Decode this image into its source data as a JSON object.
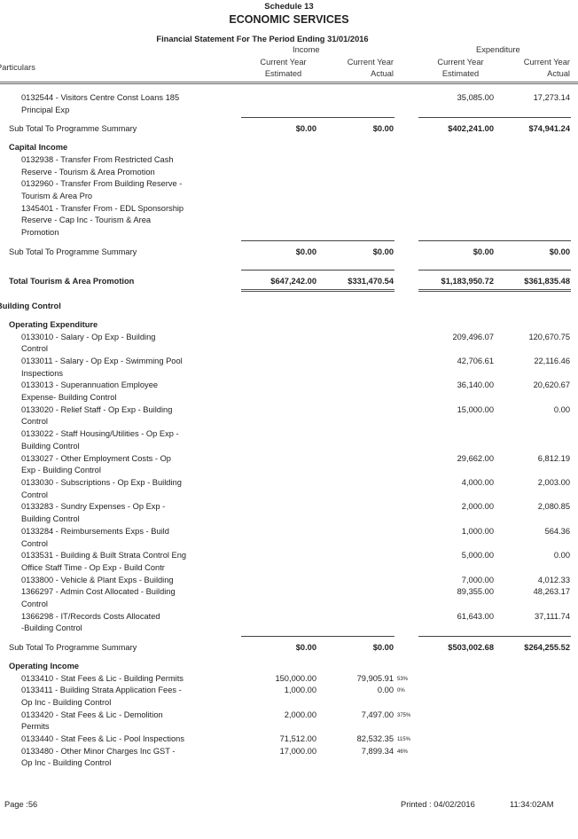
{
  "header": {
    "schedule": "Schedule 13",
    "title": "ECONOMIC SERVICES",
    "subtitle": "Financial Statement For The Period Ending 31/01/2016"
  },
  "columns": {
    "particulars": "Particulars",
    "income": "Income",
    "expenditure": "Expenditure",
    "sub": [
      [
        "Current Year",
        "Estimated"
      ],
      [
        "Current Year",
        "Actual"
      ],
      [
        "Current Year",
        "Estimated"
      ],
      [
        "Current Year",
        "Actual"
      ]
    ]
  },
  "rows": [
    {
      "type": "item",
      "lines": [
        "0132544 - Visitors Centre Const Loans 185",
        "Principal Exp"
      ],
      "amounts": [
        "",
        "",
        "35,085.00",
        "17,273.14"
      ]
    },
    {
      "type": "subtotal",
      "label": "Sub Total To Programme Summary",
      "amounts": [
        "$0.00",
        "$0.00",
        "$402,241.00",
        "$74,941.24"
      ]
    },
    {
      "type": "heading",
      "label": "Capital Income"
    },
    {
      "type": "item",
      "lines": [
        "0132938 - Transfer From Restricted Cash",
        "Reserve - Tourism & Area Promotion"
      ],
      "amounts": [
        "",
        "",
        "",
        ""
      ]
    },
    {
      "type": "item",
      "lines": [
        "0132960 - Transfer From Building Reserve -",
        "Tourism & Area Pro"
      ],
      "amounts": [
        "",
        "",
        "",
        ""
      ]
    },
    {
      "type": "item",
      "lines": [
        "1345401 - Transfer From - EDL Sponsorship",
        "Reserve - Cap Inc - Tourism & Area",
        "Promotion"
      ],
      "amounts": [
        "",
        "",
        "",
        ""
      ]
    },
    {
      "type": "subtotal",
      "label": "Sub Total To Programme Summary",
      "amounts": [
        "$0.00",
        "$0.00",
        "$0.00",
        "$0.00"
      ]
    },
    {
      "type": "total",
      "label": "Total Tourism & Area Promotion",
      "amounts": [
        "$647,242.00",
        "$331,470.54",
        "$1,183,950.72",
        "$361,835.48"
      ]
    },
    {
      "type": "section",
      "label": "Building Control"
    },
    {
      "type": "heading",
      "label": "Operating Expenditure"
    },
    {
      "type": "item",
      "lines": [
        "0133010 - Salary  - Op Exp - Building",
        "Control"
      ],
      "amounts": [
        "",
        "",
        "209,496.07",
        "120,670.75"
      ]
    },
    {
      "type": "item",
      "lines": [
        "0133011 - Salary - Op Exp - Swimming Pool",
        "Inspections"
      ],
      "amounts": [
        "",
        "",
        "42,706.61",
        "22,116.46"
      ]
    },
    {
      "type": "item",
      "lines": [
        "0133013 - Superannuation Employee",
        "Expense- Building Control"
      ],
      "amounts": [
        "",
        "",
        "36,140.00",
        "20,620.67"
      ]
    },
    {
      "type": "item",
      "lines": [
        "0133020 - Relief Staff - Op Exp - Building",
        "Control"
      ],
      "amounts": [
        "",
        "",
        "15,000.00",
        "0.00"
      ]
    },
    {
      "type": "item",
      "lines": [
        "0133022 - Staff Housing/Utilities - Op Exp -",
        "Building Control"
      ],
      "amounts": [
        "",
        "",
        "",
        ""
      ]
    },
    {
      "type": "item",
      "lines": [
        "0133027 - Other Employment Costs - Op",
        "Exp - Building Control"
      ],
      "amounts": [
        "",
        "",
        "29,662.00",
        "6,812.19"
      ]
    },
    {
      "type": "item",
      "lines": [
        "0133030 - Subscriptions - Op Exp - Building",
        "Control"
      ],
      "amounts": [
        "",
        "",
        "4,000.00",
        "2,003.00"
      ]
    },
    {
      "type": "item",
      "lines": [
        "0133283 - Sundry Expenses - Op Exp -",
        "Building Control"
      ],
      "amounts": [
        "",
        "",
        "2,000.00",
        "2,080.85"
      ]
    },
    {
      "type": "item",
      "lines": [
        "0133284 - Reimbursements Exps - Build",
        "Control"
      ],
      "amounts": [
        "",
        "",
        "1,000.00",
        "564.36"
      ]
    },
    {
      "type": "item",
      "lines": [
        "0133531 - Building & Built Strata Control Eng",
        "Office Staff Time - Op Exp - Build Contr"
      ],
      "amounts": [
        "",
        "",
        "5,000.00",
        "0.00"
      ]
    },
    {
      "type": "item",
      "lines": [
        "0133800 - Vehicle & Plant Exps - Building"
      ],
      "amounts": [
        "",
        "",
        "7,000.00",
        "4,012.33"
      ]
    },
    {
      "type": "item",
      "lines": [
        "1366297 - Admin Cost Allocated - Building",
        "Control"
      ],
      "amounts": [
        "",
        "",
        "89,355.00",
        "48,263.17"
      ]
    },
    {
      "type": "item",
      "lines": [
        "1366298 - IT/Records Costs Allocated",
        "-Building Control"
      ],
      "amounts": [
        "",
        "",
        "61,643.00",
        "37,111.74"
      ]
    },
    {
      "type": "subtotal",
      "label": "Sub Total To Programme Summary",
      "amounts": [
        "$0.00",
        "$0.00",
        "$503,002.68",
        "$264,255.52"
      ]
    },
    {
      "type": "heading",
      "label": "Operating Income"
    },
    {
      "type": "item",
      "lines": [
        "0133410 - Stat Fees & Lic - Building Permits"
      ],
      "amounts": [
        "150,000.00",
        "79,905.91",
        "",
        ""
      ],
      "pct": "53%"
    },
    {
      "type": "item",
      "lines": [
        "0133411 - Building Strata Application Fees -",
        "Op Inc - Building Control"
      ],
      "amounts": [
        "1,000.00",
        "0.00",
        "",
        ""
      ],
      "pct": "0%"
    },
    {
      "type": "item",
      "lines": [
        "0133420 - Stat Fees & Lic - Demolition",
        "Permits"
      ],
      "amounts": [
        "2,000.00",
        "7,497.00",
        "",
        ""
      ],
      "pct": "375%"
    },
    {
      "type": "item",
      "lines": [
        "0133440 - Stat Fees & Lic - Pool Inspections"
      ],
      "amounts": [
        "71,512.00",
        "82,532.35",
        "",
        ""
      ],
      "pct": "115%"
    },
    {
      "type": "item",
      "lines": [
        "0133480 - Other Minor Charges Inc GST -",
        "Op Inc - Building Control"
      ],
      "amounts": [
        "17,000.00",
        "7,899.34",
        "",
        ""
      ],
      "pct": "46%"
    }
  ],
  "footer": {
    "page": "Page :56",
    "printed": "Printed : 04/02/2016",
    "time": "11:34:02AM"
  }
}
